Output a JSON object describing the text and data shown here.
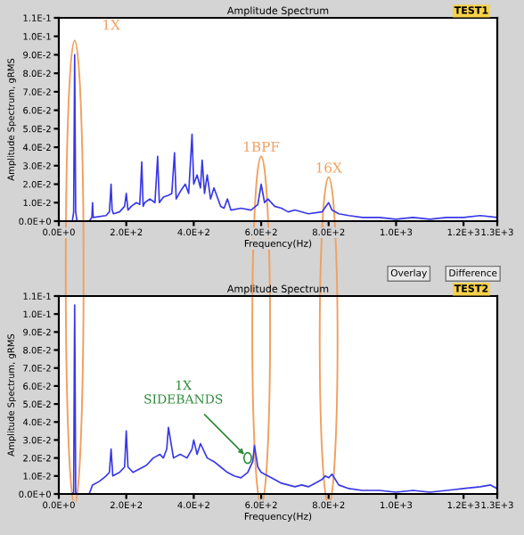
{
  "chart_data": [
    {
      "type": "line",
      "title": "Amplitude Spectrum",
      "xlabel": "Frequency(Hz)",
      "ylabel": "Amplitude Spectrum, gRMS",
      "xlim": [
        0,
        1300
      ],
      "ylim": [
        0,
        0.11
      ],
      "xticks": [
        {
          "value": 0,
          "label": "0.0E+0"
        },
        {
          "value": 200,
          "label": "2.0E+2"
        },
        {
          "value": 400,
          "label": "4.0E+2"
        },
        {
          "value": 600,
          "label": "6.0E+2"
        },
        {
          "value": 800,
          "label": "8.0E+2"
        },
        {
          "value": 1000,
          "label": "1.0E+3"
        },
        {
          "value": 1200,
          "label": "1.2E+3"
        },
        {
          "value": 1300,
          "label": "1.3E+3"
        }
      ],
      "yticks": [
        {
          "value": 0,
          "label": "0.0E+0"
        },
        {
          "value": 0.01,
          "label": "1.0E-2"
        },
        {
          "value": 0.02,
          "label": "2.0E-2"
        },
        {
          "value": 0.03,
          "label": "3.0E-2"
        },
        {
          "value": 0.04,
          "label": "4.0E-2"
        },
        {
          "value": 0.05,
          "label": "5.0E-2"
        },
        {
          "value": 0.06,
          "label": "6.0E-2"
        },
        {
          "value": 0.07,
          "label": "7.0E-2"
        },
        {
          "value": 0.08,
          "label": "8.0E-2"
        },
        {
          "value": 0.09,
          "label": "9.0E-2"
        },
        {
          "value": 0.1,
          "label": "1.0E-1"
        },
        {
          "value": 0.11,
          "label": "1.1E-1"
        }
      ],
      "series": [
        {
          "color": "#3838e8",
          "x": [
            0,
            40,
            44,
            47,
            50,
            54,
            90,
            98,
            100,
            102,
            140,
            150,
            155,
            158,
            162,
            180,
            195,
            200,
            205,
            215,
            230,
            240,
            246,
            250,
            255,
            270,
            285,
            293,
            298,
            310,
            325,
            335,
            343,
            348,
            360,
            375,
            385,
            395,
            400,
            410,
            420,
            425,
            432,
            440,
            450,
            460,
            480,
            490,
            500,
            510,
            540,
            570,
            590,
            600,
            610,
            620,
            640,
            660,
            680,
            700,
            740,
            780,
            800,
            810,
            830,
            860,
            900,
            950,
            1000,
            1050,
            1100,
            1150,
            1200,
            1250,
            1300
          ],
          "values": [
            0,
            0,
            0.005,
            0.09,
            0.005,
            0,
            0,
            0.002,
            0.01,
            0.002,
            0.003,
            0.005,
            0.02,
            0.006,
            0.004,
            0.005,
            0.008,
            0.015,
            0.006,
            0.008,
            0.01,
            0.009,
            0.032,
            0.008,
            0.01,
            0.012,
            0.01,
            0.035,
            0.01,
            0.013,
            0.014,
            0.015,
            0.037,
            0.012,
            0.016,
            0.02,
            0.015,
            0.047,
            0.02,
            0.025,
            0.018,
            0.033,
            0.015,
            0.025,
            0.012,
            0.018,
            0.008,
            0.007,
            0.012,
            0.006,
            0.007,
            0.006,
            0.009,
            0.02,
            0.01,
            0.012,
            0.008,
            0.007,
            0.005,
            0.006,
            0.004,
            0.005,
            0.01,
            0.006,
            0.004,
            0.003,
            0.002,
            0.002,
            0.001,
            0.002,
            0.001,
            0.002,
            0.002,
            0.003,
            0.002
          ]
        }
      ],
      "annotations": [
        "TEST1",
        {
          "text": "1X",
          "x": 47,
          "y": 0.09
        },
        {
          "text": "1BPF",
          "x": 600,
          "y": 0.02
        },
        {
          "text": "16X",
          "x": 800,
          "y": 0.01
        }
      ]
    },
    {
      "type": "line",
      "title": "Amplitude Spectrum",
      "xlabel": "Frequency(Hz)",
      "ylabel": "Amplitude Spectrum, gRMS",
      "xlim": [
        0,
        1300
      ],
      "ylim": [
        0,
        0.11
      ],
      "xticks": [
        {
          "value": 0,
          "label": "0.0E+0"
        },
        {
          "value": 200,
          "label": "2.0E+2"
        },
        {
          "value": 400,
          "label": "4.0E+2"
        },
        {
          "value": 600,
          "label": "6.0E+2"
        },
        {
          "value": 800,
          "label": "8.0E+2"
        },
        {
          "value": 1000,
          "label": "1.0E+3"
        },
        {
          "value": 1200,
          "label": "1.2E+3"
        },
        {
          "value": 1300,
          "label": "1.3E+3"
        }
      ],
      "yticks": [
        {
          "value": 0,
          "label": "0.0E+0"
        },
        {
          "value": 0.01,
          "label": "1.0E-2"
        },
        {
          "value": 0.02,
          "label": "2.0E-2"
        },
        {
          "value": 0.03,
          "label": "3.0E-2"
        },
        {
          "value": 0.04,
          "label": "4.0E-2"
        },
        {
          "value": 0.05,
          "label": "5.0E-2"
        },
        {
          "value": 0.06,
          "label": "6.0E-2"
        },
        {
          "value": 0.07,
          "label": "7.0E-2"
        },
        {
          "value": 0.08,
          "label": "8.0E-2"
        },
        {
          "value": 0.09,
          "label": "9.0E-2"
        },
        {
          "value": 0.1,
          "label": "1.0E-1"
        },
        {
          "value": 0.11,
          "label": "1.1E-1"
        }
      ],
      "series": [
        {
          "color": "#3838e8",
          "x": [
            0,
            40,
            44,
            46,
            47,
            48,
            50,
            54,
            90,
            100,
            120,
            140,
            150,
            155,
            160,
            180,
            195,
            200,
            205,
            220,
            240,
            260,
            280,
            300,
            310,
            320,
            325,
            340,
            360,
            380,
            395,
            400,
            410,
            420,
            440,
            460,
            480,
            500,
            520,
            540,
            560,
            575,
            580,
            590,
            600,
            620,
            640,
            660,
            680,
            700,
            720,
            740,
            760,
            780,
            790,
            800,
            810,
            830,
            860,
            900,
            950,
            1000,
            1050,
            1100,
            1150,
            1200,
            1250,
            1280,
            1300
          ],
          "values": [
            0,
            0,
            0.001,
            0.075,
            0.105,
            0.075,
            0.001,
            0,
            0,
            0.005,
            0.007,
            0.01,
            0.012,
            0.025,
            0.01,
            0.012,
            0.015,
            0.035,
            0.015,
            0.012,
            0.014,
            0.016,
            0.02,
            0.022,
            0.02,
            0.025,
            0.037,
            0.02,
            0.022,
            0.02,
            0.025,
            0.03,
            0.022,
            0.028,
            0.02,
            0.018,
            0.015,
            0.012,
            0.01,
            0.009,
            0.012,
            0.018,
            0.027,
            0.015,
            0.012,
            0.01,
            0.008,
            0.006,
            0.005,
            0.004,
            0.005,
            0.004,
            0.006,
            0.008,
            0.01,
            0.009,
            0.011,
            0.005,
            0.003,
            0.002,
            0.002,
            0.001,
            0.002,
            0.001,
            0.002,
            0.003,
            0.004,
            0.005,
            0.003
          ]
        }
      ],
      "annotations": [
        "TEST2",
        "Overlay",
        "Difference",
        {
          "text": "1X\nSIDEBANDS",
          "x": 560,
          "y": 0.02
        }
      ]
    }
  ]
}
